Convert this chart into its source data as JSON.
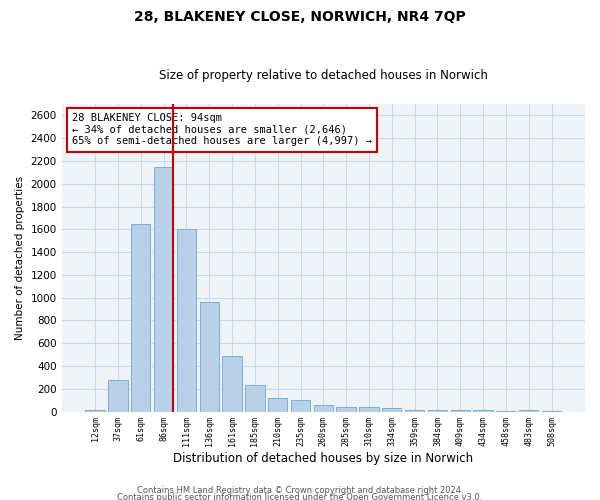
{
  "title1": "28, BLAKENEY CLOSE, NORWICH, NR4 7QP",
  "title2": "Size of property relative to detached houses in Norwich",
  "xlabel": "Distribution of detached houses by size in Norwich",
  "ylabel": "Number of detached properties",
  "categories": [
    "12sqm",
    "37sqm",
    "61sqm",
    "86sqm",
    "111sqm",
    "136sqm",
    "161sqm",
    "185sqm",
    "210sqm",
    "235sqm",
    "260sqm",
    "285sqm",
    "310sqm",
    "334sqm",
    "359sqm",
    "384sqm",
    "409sqm",
    "434sqm",
    "458sqm",
    "483sqm",
    "508sqm"
  ],
  "values": [
    18,
    280,
    1650,
    2150,
    1600,
    960,
    490,
    235,
    120,
    100,
    60,
    40,
    40,
    30,
    10,
    10,
    10,
    10,
    5,
    10,
    5
  ],
  "bar_color": "#b8d0e8",
  "bar_edge_color": "#7aafd4",
  "vline_color": "#cc0000",
  "vline_x_idx": 3.43,
  "annotation_text": "28 BLAKENEY CLOSE: 94sqm\n← 34% of detached houses are smaller (2,646)\n65% of semi-detached houses are larger (4,997) →",
  "annotation_box_color": "white",
  "annotation_box_edge": "#cc0000",
  "ylim": [
    0,
    2700
  ],
  "yticks": [
    0,
    200,
    400,
    600,
    800,
    1000,
    1200,
    1400,
    1600,
    1800,
    2000,
    2200,
    2400,
    2600
  ],
  "grid_color": "#c8d8e8",
  "footer1": "Contains HM Land Registry data © Crown copyright and database right 2024.",
  "footer2": "Contains public sector information licensed under the Open Government Licence v3.0.",
  "bg_color": "#eef3f8"
}
